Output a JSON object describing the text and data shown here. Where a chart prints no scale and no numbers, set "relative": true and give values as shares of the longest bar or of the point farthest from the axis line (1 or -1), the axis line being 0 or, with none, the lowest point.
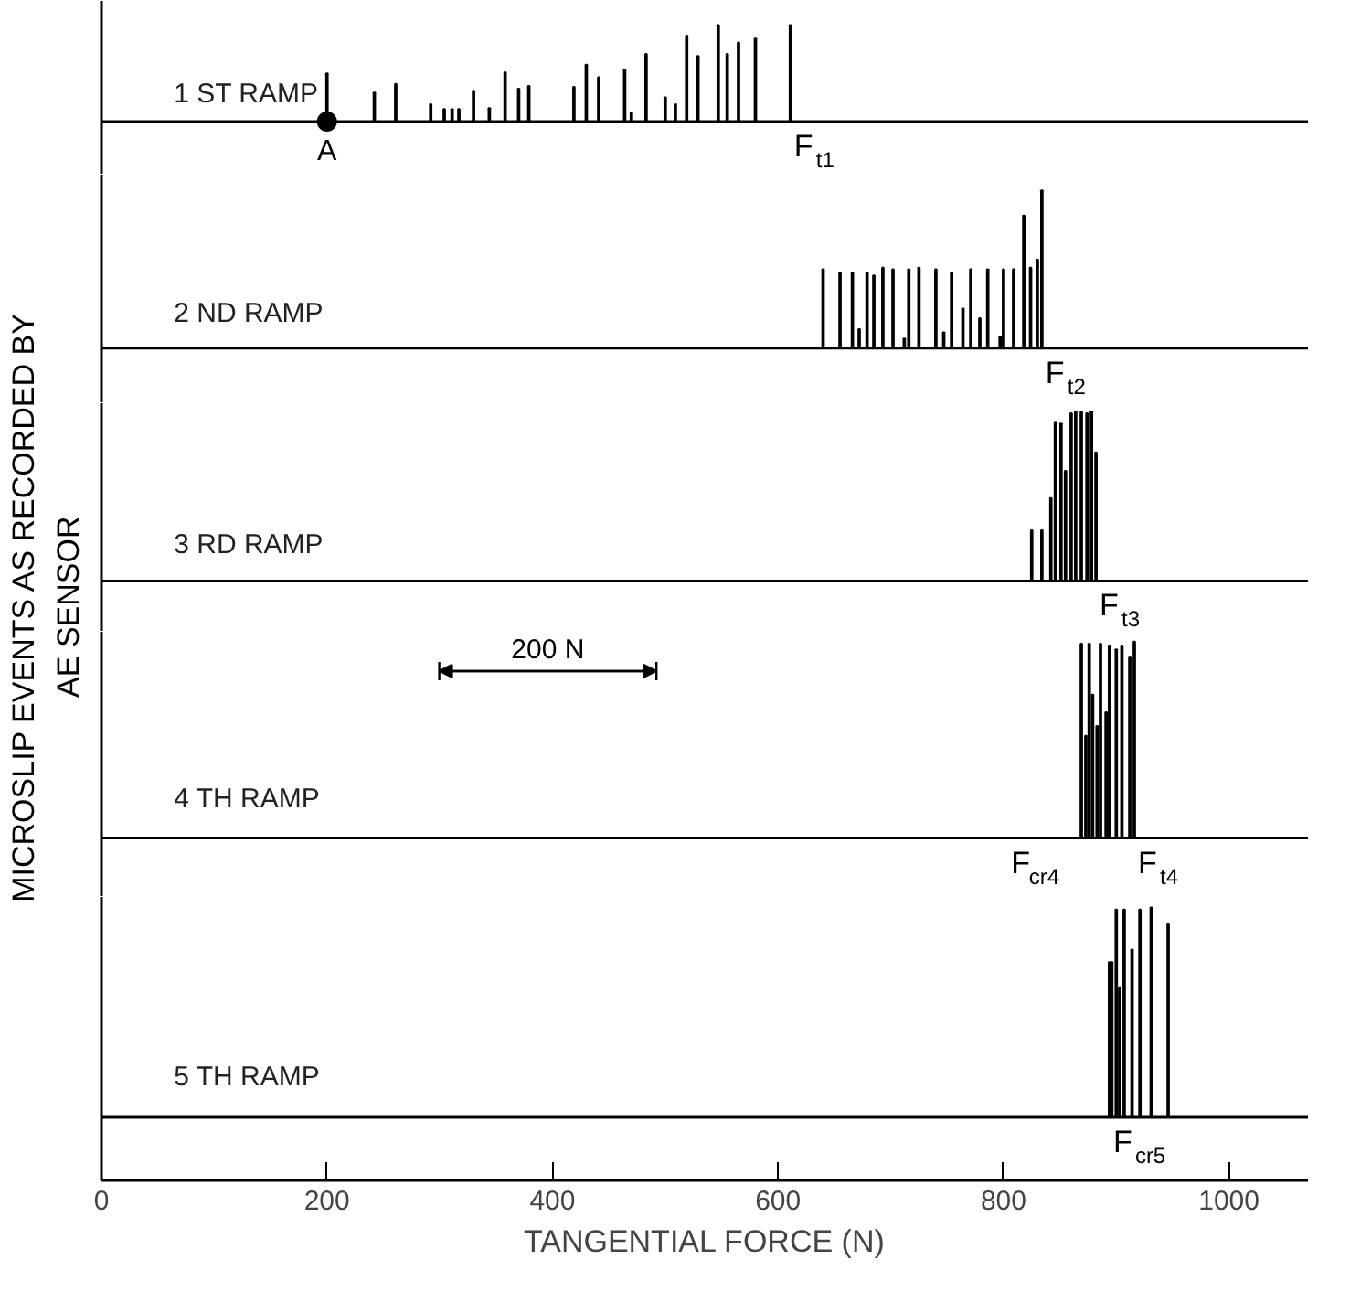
{
  "chart_data": [
    {
      "type": "bar",
      "relative": true,
      "xlim": [
        0,
        1070
      ],
      "xticks": [
        0,
        200,
        400,
        600,
        800,
        1000
      ],
      "tick_labels": false,
      "series": [
        {
          "name": "1 ST RAMP",
          "color": "#000000",
          "x": [
            200,
            242,
            261,
            292,
            304,
            311,
            317,
            330,
            344,
            358,
            370,
            379,
            419,
            430,
            441,
            464,
            470,
            483,
            500,
            509,
            519,
            529,
            547,
            555,
            565,
            580,
            611
          ],
          "values": [
            0.5,
            0.3,
            0.39,
            0.18,
            0.13,
            0.13,
            0.13,
            0.32,
            0.14,
            0.51,
            0.34,
            0.37,
            0.36,
            0.59,
            0.46,
            0.54,
            0.09,
            0.7,
            0.25,
            0.18,
            0.89,
            0.68,
            1.0,
            0.7,
            0.82,
            0.86,
            1.0
          ]
        }
      ],
      "annotations": [
        {
          "text": "A",
          "x": 200,
          "y": 0
        },
        {
          "text": "F$_{t1}$",
          "x": 611,
          "y": 0
        }
      ]
    },
    {
      "type": "bar",
      "relative": true,
      "xlim": [
        0,
        1070
      ],
      "xticks": [
        0,
        200,
        400,
        600,
        800,
        1000
      ],
      "tick_labels": false,
      "series": [
        {
          "name": "2 ND RAMP",
          "color": "#000000",
          "x": [
            640,
            655,
            666,
            672,
            679,
            685,
            693,
            702,
            712,
            716,
            725,
            740,
            747,
            754,
            764,
            771,
            779,
            786,
            797,
            800,
            809,
            818,
            824,
            830,
            834
          ],
          "values": [
            0.5,
            0.48,
            0.48,
            0.12,
            0.48,
            0.46,
            0.51,
            0.5,
            0.06,
            0.5,
            0.51,
            0.5,
            0.1,
            0.48,
            0.25,
            0.5,
            0.19,
            0.5,
            0.07,
            0.5,
            0.5,
            0.84,
            0.51,
            0.56,
            1.0
          ]
        }
      ],
      "annotations": [
        {
          "text": "F$_{t2}$",
          "x": 834,
          "y": 0
        }
      ]
    },
    {
      "type": "bar",
      "relative": true,
      "xlim": [
        0,
        1070
      ],
      "xticks": [
        0,
        200,
        400,
        600,
        800,
        1000
      ],
      "tick_labels": false,
      "series": [
        {
          "name": "3 RD RAMP",
          "color": "#000000",
          "x": [
            825,
            834,
            842,
            846,
            851,
            855,
            860,
            864,
            869,
            874,
            878,
            882
          ],
          "values": [
            0.3,
            0.3,
            0.49,
            0.94,
            0.93,
            0.65,
            0.99,
            1.0,
            1.0,
            0.99,
            1.0,
            0.76
          ]
        }
      ],
      "annotations": [
        {
          "text": "F$_{t3}$",
          "x": 882,
          "y": 0
        }
      ]
    },
    {
      "type": "bar",
      "relative": true,
      "xlim": [
        0,
        1070
      ],
      "xticks": [
        0,
        200,
        400,
        600,
        800,
        1000
      ],
      "tick_labels": false,
      "series": [
        {
          "name": "4 TH RAMP",
          "color": "#000000",
          "x": [
            869,
            873,
            876,
            879,
            883,
            886,
            891,
            894,
            900,
            905,
            912,
            916
          ],
          "values": [
            0.99,
            0.52,
            0.99,
            0.73,
            0.57,
            0.99,
            0.64,
            0.98,
            0.96,
            0.98,
            0.92,
            1.0
          ]
        }
      ],
      "annotations": [
        {
          "text": "F$_{cr4}$",
          "x": 869,
          "y": 0
        },
        {
          "text": "F$_{t4}$",
          "x": 916,
          "y": 0
        },
        "200 N"
      ]
    },
    {
      "type": "bar",
      "relative": true,
      "xlim": [
        0,
        1070
      ],
      "xticks": [
        0,
        200,
        400,
        600,
        800,
        1000
      ],
      "xlabel": "TANGENTIAL FORCE (N)",
      "ylabel": "MICROSLIP EVENTS AS RECORDED BY\nAE SENSOR",
      "series": [
        {
          "name": "5 TH RAMP",
          "color": "#000000",
          "x": [
            894,
            896,
            900,
            903,
            907,
            914,
            921,
            931,
            946
          ],
          "values": [
            0.74,
            0.74,
            0.99,
            0.62,
            0.99,
            0.8,
            0.99,
            1.0,
            0.92
          ]
        }
      ],
      "annotations": [
        {
          "text": "F$_{cr5}$",
          "x": 894,
          "y": 0
        }
      ]
    }
  ]
}
